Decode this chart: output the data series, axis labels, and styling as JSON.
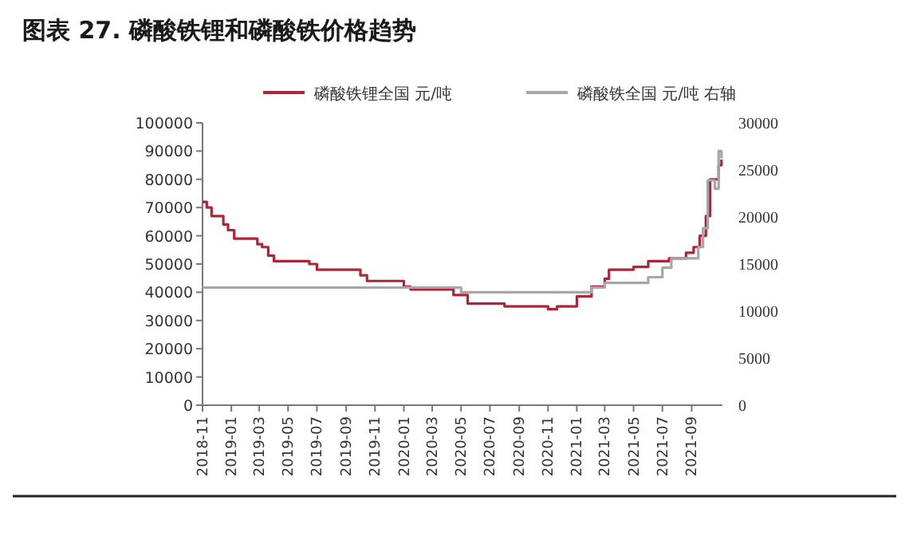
{
  "chart_data": {
    "type": "step",
    "title": "图表 27. 磷酸铁锂和磷酸铁价格趋势",
    "xlim": [
      "2018-11-01",
      "2021-11-05"
    ],
    "xticks": [
      "2018-11",
      "2019-01",
      "2019-03",
      "2019-05",
      "2019-07",
      "2019-09",
      "2019-11",
      "2020-01",
      "2020-03",
      "2020-05",
      "2020-07",
      "2020-09",
      "2020-11",
      "2021-01",
      "2021-03",
      "2021-05",
      "2021-07",
      "2021-09"
    ],
    "ylim": [
      0,
      100000
    ],
    "yticks": [
      0,
      10000,
      20000,
      30000,
      40000,
      50000,
      60000,
      70000,
      80000,
      90000,
      100000
    ],
    "y2lim": [
      0,
      30000
    ],
    "y2ticks": [
      0,
      5000,
      10000,
      15000,
      20000,
      25000,
      30000
    ],
    "legend": "top",
    "grid": false,
    "series": [
      {
        "name": "磷酸铁锂全国 元/吨",
        "color": "#b0243a",
        "x": [
          "2018-11-01",
          "2018-11-10",
          "2018-11-20",
          "2018-12-15",
          "2018-12-25",
          "2019-01-07",
          "2019-02-25",
          "2019-03-07",
          "2019-03-20",
          "2019-04-01",
          "2019-06-15",
          "2019-07-01",
          "2019-10-01",
          "2019-10-15",
          "2020-01-01",
          "2020-01-15",
          "2020-04-15",
          "2020-05-15",
          "2020-08-01",
          "2020-11-01",
          "2020-11-20",
          "2021-01-01",
          "2021-02-01",
          "2021-03-01",
          "2021-03-10",
          "2021-05-01",
          "2021-06-01",
          "2021-07-15",
          "2021-08-20",
          "2021-09-05",
          "2021-09-18",
          "2021-10-01",
          "2021-10-10",
          "2021-10-28",
          "2021-11-03"
        ],
        "values": [
          72000,
          70000,
          67000,
          64000,
          62000,
          59000,
          57000,
          56000,
          53000,
          51000,
          50000,
          48000,
          46000,
          44000,
          42000,
          41000,
          39000,
          36000,
          35000,
          34000,
          35000,
          38500,
          42000,
          44800,
          48000,
          49000,
          51000,
          52000,
          54000,
          56000,
          60000,
          67000,
          80000,
          85000,
          87000
        ]
      },
      {
        "name": "磷酸铁全国 元/吨 右轴",
        "color": "#a6a6a6",
        "axis": "y2",
        "x": [
          "2018-11-01",
          "2020-05-01",
          "2021-02-01",
          "2021-03-01",
          "2021-06-01",
          "2021-07-01",
          "2021-07-20",
          "2021-09-15",
          "2021-09-25",
          "2021-10-05",
          "2021-10-20",
          "2021-10-28",
          "2021-11-03"
        ],
        "values": [
          12500,
          12000,
          12500,
          13000,
          13600,
          14600,
          15600,
          16800,
          18800,
          23900,
          23000,
          27000,
          26200
        ]
      }
    ]
  }
}
